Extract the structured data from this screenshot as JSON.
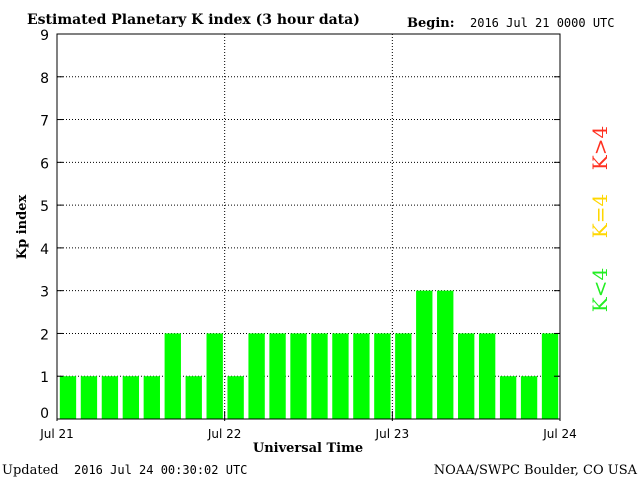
{
  "chart_data": {
    "type": "bar",
    "title": "Estimated Planetary K index (3 hour data)",
    "begin_label": "Begin:",
    "begin_value": "2016 Jul 21 0000 UTC",
    "xlabel": "Universal Time",
    "ylabel": "Kp index",
    "ylim": [
      0,
      9
    ],
    "yticks": [
      "0",
      "1",
      "2",
      "3",
      "4",
      "5",
      "6",
      "7",
      "8",
      "9"
    ],
    "x_ticks": [
      "Jul 21",
      "Jul 22",
      "Jul 23",
      "Jul 24"
    ],
    "values": [
      1,
      1,
      1,
      1,
      1,
      2,
      1,
      2,
      1,
      2,
      2,
      2,
      2,
      2,
      2,
      2,
      2,
      3,
      3,
      2,
      2,
      1,
      1,
      2
    ],
    "grid": true,
    "bar_color": "#00ff00",
    "legend": [
      {
        "label": "K<4",
        "color": "#22ee22"
      },
      {
        "label": "K=4",
        "color": "#ffd700"
      },
      {
        "label": "K>4",
        "color": "#ff3020"
      }
    ]
  },
  "footer": {
    "updated_label": "Updated",
    "updated_value": "2016 Jul 24 00:30:02 UTC",
    "source": "NOAA/SWPC Boulder, CO USA"
  }
}
